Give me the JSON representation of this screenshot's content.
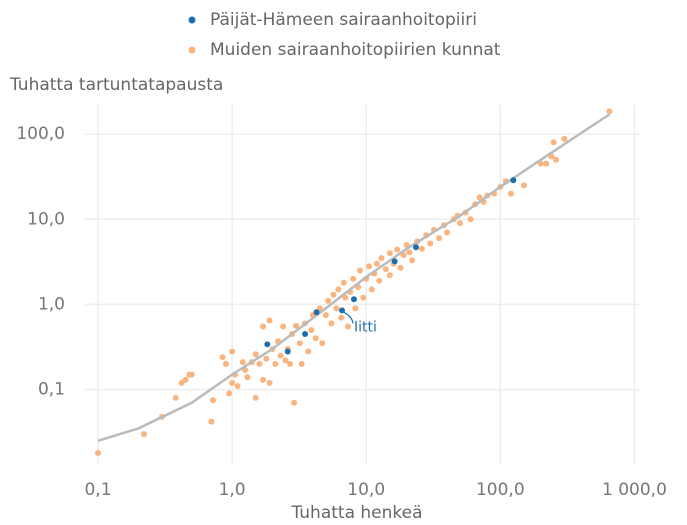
{
  "chart_data": {
    "type": "scatter",
    "y_label": "Tuhatta tartuntatapausta",
    "x_label": "Tuhatta henkeä",
    "log_x": true,
    "log_y": true,
    "grid": true,
    "legend": "top",
    "xlim": [
      0.08,
      1100
    ],
    "ylim": [
      0.013,
      220
    ],
    "xticks": [
      {
        "value": 0.1,
        "label": "0,1"
      },
      {
        "value": 1,
        "label": "1,0"
      },
      {
        "value": 10,
        "label": "10,0"
      },
      {
        "value": 100,
        "label": "100,0"
      },
      {
        "value": 1000,
        "label": "1 000,0"
      }
    ],
    "yticks": [
      {
        "value": 0.1,
        "label": "0,1"
      },
      {
        "value": 1,
        "label": "1,0"
      },
      {
        "value": 10,
        "label": "10,0"
      },
      {
        "value": 100,
        "label": "100,0"
      }
    ],
    "series": [
      {
        "name": "Päijät-Hämeen sairaanhoitopiiri",
        "color": "#1f6fad",
        "x": [
          1.83,
          2.6,
          3.5,
          4.26,
          6.6,
          8.1,
          16.3,
          23.5,
          125
        ],
        "values": [
          0.34,
          0.28,
          0.45,
          0.81,
          0.85,
          1.15,
          3.2,
          4.7,
          28.7
        ]
      },
      {
        "name": "Muiden sairaanhoitopiirien kunnat",
        "color": "#f9b47f",
        "x": [
          0.1,
          0.22,
          0.3,
          0.38,
          0.42,
          0.45,
          0.48,
          0.5,
          0.7,
          0.72,
          0.85,
          0.9,
          0.95,
          1.0,
          1.0,
          1.05,
          1.1,
          1.2,
          1.25,
          1.3,
          1.4,
          1.5,
          1.5,
          1.6,
          1.7,
          1.7,
          1.8,
          1.9,
          1.9,
          2.0,
          2.1,
          2.2,
          2.3,
          2.4,
          2.5,
          2.6,
          2.7,
          2.8,
          2.9,
          3.0,
          3.2,
          3.3,
          3.5,
          3.7,
          3.9,
          4.0,
          4.2,
          4.5,
          4.7,
          5.0,
          5.2,
          5.5,
          5.7,
          6.0,
          6.2,
          6.5,
          6.8,
          7.0,
          7.3,
          7.6,
          8.0,
          8.3,
          8.7,
          9.0,
          9.5,
          10,
          10.5,
          11,
          11.5,
          12,
          12.5,
          13,
          14,
          15,
          15,
          16,
          17,
          18,
          19,
          20,
          21,
          22,
          24,
          26,
          28,
          30,
          32,
          35,
          38,
          40,
          45,
          48,
          50,
          55,
          60,
          65,
          70,
          75,
          80,
          90,
          100,
          110,
          120,
          150,
          200,
          220,
          240,
          250,
          260,
          300,
          650
        ],
        "values": [
          0.018,
          0.03,
          0.048,
          0.08,
          0.12,
          0.13,
          0.15,
          0.15,
          0.042,
          0.075,
          0.24,
          0.2,
          0.09,
          0.28,
          0.12,
          0.15,
          0.11,
          0.21,
          0.17,
          0.14,
          0.21,
          0.08,
          0.26,
          0.2,
          0.13,
          0.55,
          0.23,
          0.12,
          0.65,
          0.3,
          0.2,
          0.37,
          0.25,
          0.55,
          0.22,
          0.3,
          0.2,
          0.45,
          0.07,
          0.56,
          0.35,
          0.2,
          0.6,
          0.28,
          0.5,
          0.75,
          0.4,
          0.9,
          0.35,
          0.75,
          1.1,
          0.6,
          1.3,
          0.9,
          1.5,
          0.7,
          1.8,
          1.2,
          0.55,
          1.4,
          2.0,
          0.9,
          1.6,
          2.5,
          1.2,
          2.0,
          2.8,
          1.5,
          2.3,
          3.0,
          1.9,
          3.5,
          2.6,
          2.2,
          4.0,
          3.0,
          4.4,
          2.7,
          3.8,
          5.0,
          4.1,
          3.3,
          5.5,
          4.5,
          6.5,
          5.2,
          7.5,
          6.0,
          8.5,
          7.0,
          10,
          11,
          9.0,
          12,
          10,
          15,
          18,
          16,
          19,
          20,
          24,
          28,
          20,
          25,
          45,
          45,
          55,
          80,
          50,
          88,
          185
        ]
      }
    ],
    "trend": {
      "color": "#bbbbbb",
      "x": [
        0.1,
        0.2,
        0.5,
        1,
        2,
        5,
        10,
        20,
        50,
        100,
        200,
        500,
        650
      ],
      "values": [
        0.025,
        0.035,
        0.07,
        0.15,
        0.3,
        0.9,
        2.1,
        4.5,
        11,
        24,
        50,
        130,
        170
      ]
    },
    "annotation": "Iitti"
  }
}
